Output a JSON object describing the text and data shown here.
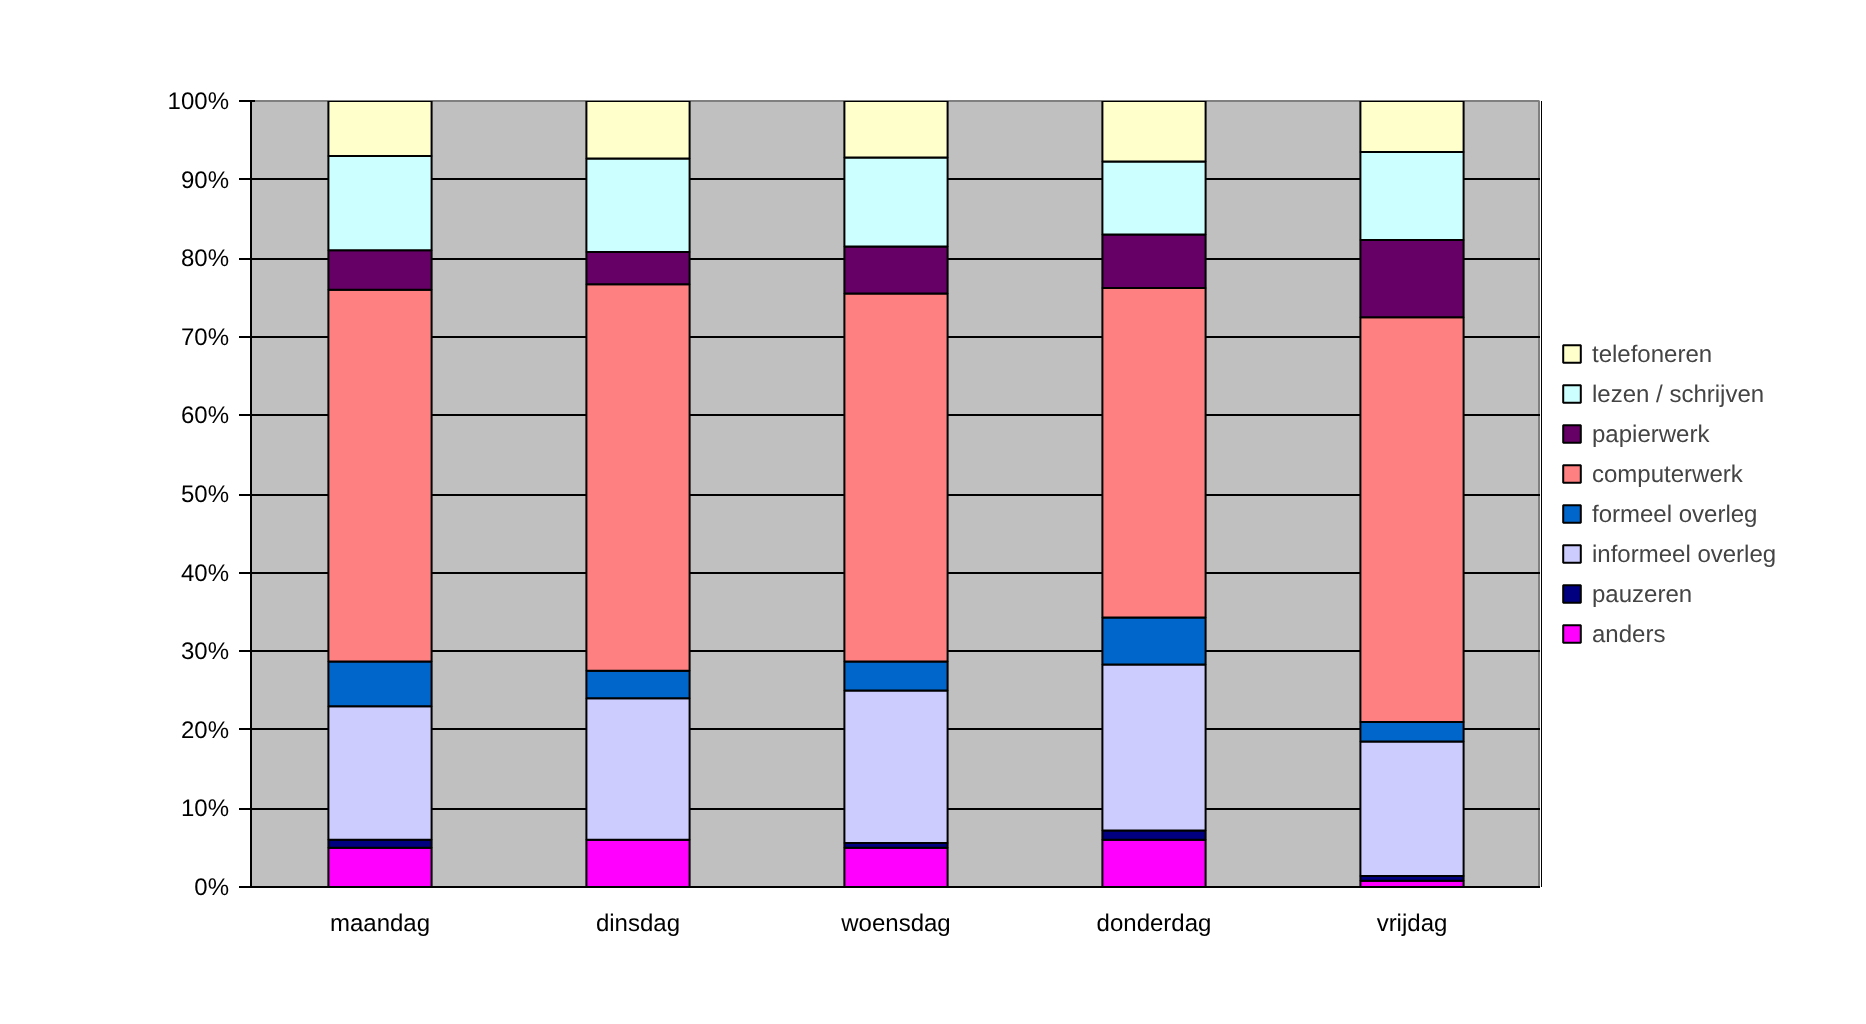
{
  "chart_data": {
    "type": "bar",
    "stacked": true,
    "categories": [
      "maandag",
      "dinsdag",
      "woensdag",
      "donderdag",
      "vrijdag"
    ],
    "series": [
      {
        "name": "anders",
        "color": "#ff00ff",
        "values": [
          5,
          6,
          5,
          6,
          0.8
        ]
      },
      {
        "name": "pauzeren",
        "color": "#000080",
        "values": [
          1,
          0,
          0.6,
          1.2,
          0.6
        ]
      },
      {
        "name": "informeel overleg",
        "color": "#ccccff",
        "values": [
          17,
          18,
          19.4,
          21.1,
          17.1
        ]
      },
      {
        "name": "formeel overleg",
        "color": "#0066cc",
        "values": [
          5.7,
          3.5,
          3.7,
          6,
          2.5
        ]
      },
      {
        "name": "computerwerk",
        "color": "#ff8080",
        "values": [
          47.3,
          49.2,
          46.8,
          41.9,
          51.5
        ]
      },
      {
        "name": "papierwerk",
        "color": "#660066",
        "values": [
          5,
          4.1,
          6,
          6.8,
          9.8
        ]
      },
      {
        "name": "lezen / schrijven",
        "color": "#ccffff",
        "values": [
          12,
          11.9,
          11.3,
          9.3,
          11.2
        ]
      },
      {
        "name": "telefoneren",
        "color": "#ffffcc",
        "values": [
          7,
          7.3,
          7.2,
          7.7,
          6.5
        ]
      }
    ],
    "ylim": [
      0,
      100
    ],
    "yticks": [
      {
        "value": 0,
        "label": "0%"
      },
      {
        "value": 10,
        "label": "10%"
      },
      {
        "value": 20,
        "label": "20%"
      },
      {
        "value": 30,
        "label": "30%"
      },
      {
        "value": 40,
        "label": "40%"
      },
      {
        "value": 50,
        "label": "50%"
      },
      {
        "value": 60,
        "label": "60%"
      },
      {
        "value": 70,
        "label": "70%"
      },
      {
        "value": 80,
        "label": "80%"
      },
      {
        "value": 90,
        "label": "90%"
      },
      {
        "value": 100,
        "label": "100%"
      }
    ],
    "grid": "y",
    "legend": "right"
  }
}
